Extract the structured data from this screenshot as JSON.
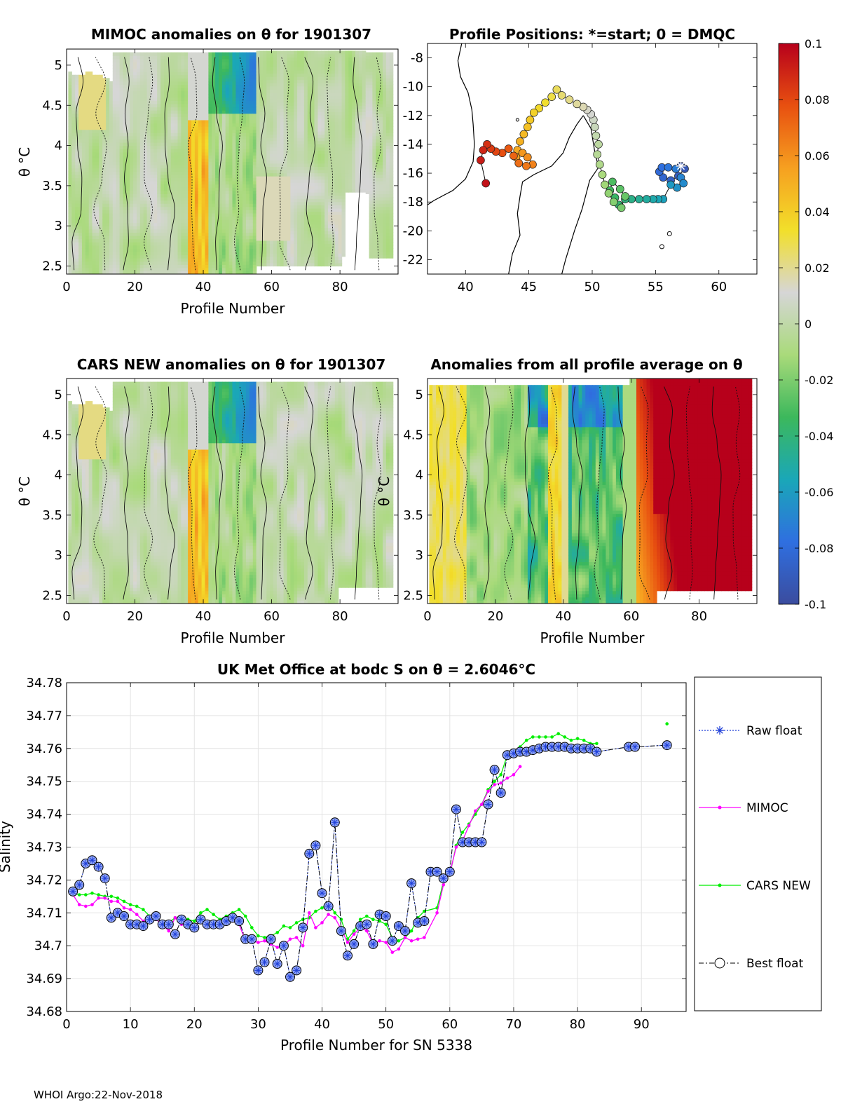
{
  "footer": "WHOI Argo:22-Nov-2018",
  "colors": {
    "raw_float": "#1f3fd8",
    "mimoc": "#ff00ff",
    "cars": "#00ee00",
    "best": "#000000",
    "land": "#000000",
    "nodata": "#d8d8d8"
  },
  "colorbar": {
    "ticks": [
      "0.1",
      "0.08",
      "0.06",
      "0.04",
      "0.02",
      "0",
      "-0.02",
      "-0.04",
      "-0.06",
      "-0.08",
      "-0.1"
    ],
    "range": [
      -0.1,
      0.1
    ],
    "stops": [
      "#3b4c9e",
      "#2f6fe0",
      "#1aa7b8",
      "#3cb85c",
      "#a9da7a",
      "#d6d6d6",
      "#f2df2a",
      "#f6a020",
      "#e85010",
      "#b7001b"
    ]
  },
  "chart_data": [
    {
      "id": "mimoc",
      "type": "heatmap",
      "title": "MIMOC anomalies on θ  for 1901307",
      "xlabel": "Profile Number",
      "ylabel": "θ °C",
      "xlim": [
        0,
        97
      ],
      "ylim": [
        2.4,
        5.2
      ],
      "xticks": [
        "0",
        "20",
        "40",
        "60",
        "80"
      ],
      "yticks": [
        "2.5",
        "3",
        "3.5",
        "4",
        "4.5",
        "5"
      ]
    },
    {
      "id": "positions",
      "type": "scatter",
      "title": "Profile Positions: *=start; 0 = DMQC",
      "xlim": [
        37,
        63
      ],
      "ylim": [
        -23,
        -7
      ],
      "xticks": [
        "40",
        "45",
        "50",
        "55",
        "60"
      ],
      "yticks": [
        "-8",
        "-10",
        "-12",
        "-14",
        "-16",
        "-18",
        "-20",
        "-22"
      ],
      "lon": [
        57.0,
        57.3,
        56.8,
        56.2,
        55.6,
        55.3,
        55.5,
        56.0,
        56.6,
        57.0,
        57.2,
        56.7,
        56.2,
        55.6,
        55.2,
        54.8,
        54.3,
        53.7,
        53.1,
        52.6,
        52.1,
        51.8,
        51.4,
        51.6,
        52.2,
        52.6,
        52.3,
        51.7,
        51.3,
        51.0,
        50.8,
        50.6,
        50.4,
        50.5,
        50.3,
        50.2,
        50.1,
        49.9,
        49.6,
        49.3,
        48.8,
        48.2,
        47.6,
        47.2,
        46.8,
        46.3,
        45.8,
        45.4,
        45.1,
        44.9,
        44.6,
        44.3,
        44.1,
        44.0,
        44.5,
        44.9,
        45.3,
        44.8,
        44.2,
        43.8,
        43.4,
        42.9,
        42.4,
        42.0,
        41.7,
        41.4,
        41.2,
        41.6
      ],
      "lat": [
        -15.5,
        -15.7,
        -16.2,
        -16.5,
        -16.3,
        -15.9,
        -15.6,
        -15.6,
        -15.7,
        -16.3,
        -16.7,
        -17.0,
        -16.8,
        -17.8,
        -17.8,
        -17.8,
        -17.8,
        -17.8,
        -17.8,
        -17.8,
        -18.2,
        -17.7,
        -17.2,
        -16.6,
        -17.1,
        -17.6,
        -18.4,
        -18.0,
        -17.4,
        -16.8,
        -16.1,
        -15.4,
        -14.7,
        -14.0,
        -13.4,
        -12.8,
        -12.3,
        -11.9,
        -11.6,
        -11.4,
        -11.2,
        -10.9,
        -10.6,
        -10.2,
        -10.7,
        -11.1,
        -11.5,
        -11.8,
        -12.3,
        -12.8,
        -13.3,
        -13.8,
        -14.4,
        -14.9,
        -14.6,
        -14.9,
        -15.4,
        -15.5,
        -15.3,
        -14.8,
        -14.3,
        -14.6,
        -14.5,
        -14.3,
        -14.0,
        -14.4,
        -15.1,
        -16.7
      ],
      "start_marker": "*"
    },
    {
      "id": "cars",
      "type": "heatmap",
      "title": "CARS NEW anomalies on θ for 1901307",
      "xlabel": "Profile Number",
      "ylabel": "θ °C",
      "xlim": [
        0,
        97
      ],
      "ylim": [
        2.4,
        5.2
      ],
      "xticks": [
        "0",
        "20",
        "40",
        "60",
        "80"
      ],
      "yticks": [
        "2.5",
        "3",
        "3.5",
        "4",
        "4.5",
        "5"
      ]
    },
    {
      "id": "allavg",
      "type": "heatmap",
      "title": "Anomalies from all profile average on θ",
      "xlabel": "Profile Number",
      "ylabel": "θ °C",
      "xlim": [
        0,
        97
      ],
      "ylim": [
        2.4,
        5.2
      ],
      "xticks": [
        "0",
        "20",
        "40",
        "60",
        "80"
      ],
      "yticks": [
        "2.5",
        "3",
        "3.5",
        "4",
        "4.5",
        "5"
      ]
    },
    {
      "id": "salinity",
      "type": "line",
      "title": "UK Met Office at bodc S on θ = 2.6046°C",
      "xlabel": "Profile Number for SN 5338",
      "ylabel": "Salinity",
      "xlim": [
        0,
        97
      ],
      "ylim": [
        34.68,
        34.78
      ],
      "xticks": [
        "0",
        "10",
        "20",
        "30",
        "40",
        "50",
        "60",
        "70",
        "80",
        "90"
      ],
      "yticks": [
        "34.68",
        "34.69",
        "34.7",
        "34.71",
        "34.72",
        "34.73",
        "34.74",
        "34.75",
        "34.76",
        "34.77",
        "34.78"
      ],
      "series": [
        {
          "name": "Best float",
          "x": [
            1,
            2,
            3,
            4,
            5,
            6,
            7,
            8,
            9,
            10,
            11,
            12,
            13,
            14,
            15,
            16,
            17,
            18,
            19,
            20,
            21,
            22,
            23,
            24,
            25,
            26,
            27,
            28,
            29,
            30,
            31,
            32,
            33,
            34,
            35,
            36,
            37,
            38,
            39,
            40,
            41,
            42,
            43,
            44,
            45,
            46,
            47,
            48,
            49,
            50,
            51,
            52,
            53,
            54,
            55,
            56,
            57,
            58,
            59,
            60,
            61,
            62,
            63,
            64,
            65,
            66,
            67,
            68,
            69,
            70,
            71,
            72,
            73,
            74,
            75,
            76,
            77,
            78,
            79,
            80,
            81,
            82,
            83,
            88,
            89,
            94
          ],
          "values": [
            34.7165,
            34.7185,
            34.725,
            34.726,
            34.724,
            34.7205,
            34.7085,
            34.71,
            34.709,
            34.7065,
            34.7065,
            34.706,
            34.708,
            34.709,
            34.7065,
            34.7065,
            34.7035,
            34.708,
            34.7065,
            34.7055,
            34.708,
            34.7065,
            34.7065,
            34.7065,
            34.7075,
            34.7085,
            34.7075,
            34.702,
            34.702,
            34.6925,
            34.695,
            34.702,
            34.6945,
            34.7,
            34.6905,
            34.6925,
            34.7055,
            34.728,
            34.7305,
            34.716,
            34.712,
            34.7375,
            34.7045,
            34.697,
            34.7005,
            34.706,
            34.7065,
            34.7005,
            34.7095,
            34.709,
            34.7015,
            34.706,
            34.7045,
            34.719,
            34.707,
            34.7075,
            34.7225,
            34.7225,
            34.7205,
            34.7225,
            34.7415,
            34.7315,
            34.7315,
            34.7315,
            34.7315,
            34.743,
            34.7535,
            34.7465,
            34.758,
            34.7585,
            34.759,
            34.759,
            34.7595,
            34.76,
            34.7605,
            34.7605,
            34.7605,
            34.7605,
            34.76,
            34.76,
            34.76,
            34.76,
            34.759,
            34.7605,
            34.7605,
            34.761
          ]
        },
        {
          "name": "Raw float",
          "marker": "*"
        },
        {
          "name": "MIMOC",
          "x": [
            1,
            2,
            3,
            4,
            5,
            6,
            7,
            8,
            9,
            10,
            11,
            12,
            13,
            14,
            15,
            16,
            17,
            18,
            19,
            20,
            21,
            22,
            23,
            24,
            25,
            26,
            27,
            28,
            29,
            30,
            31,
            32,
            33,
            34,
            35,
            36,
            37,
            38,
            39,
            40,
            41,
            42,
            43,
            44,
            45,
            46,
            47,
            48,
            49,
            50,
            51,
            52,
            53,
            54,
            55,
            56,
            58,
            59,
            60,
            61,
            62,
            63,
            64,
            65,
            66,
            67,
            68,
            69,
            70,
            71
          ],
          "values": [
            34.7155,
            34.7125,
            34.712,
            34.7125,
            34.7145,
            34.7145,
            34.7135,
            34.7135,
            34.7115,
            34.711,
            34.7095,
            34.7075,
            34.707,
            34.708,
            34.7065,
            34.7045,
            34.7085,
            34.7065,
            34.706,
            34.7055,
            34.708,
            34.7065,
            34.7065,
            34.706,
            34.707,
            34.7075,
            34.7065,
            34.7015,
            34.7015,
            34.701,
            34.7015,
            34.7005,
            34.6995,
            34.7,
            34.702,
            34.7025,
            34.7,
            34.71,
            34.7055,
            34.707,
            34.7095,
            34.7085,
            34.705,
            34.701,
            34.7035,
            34.7055,
            34.7045,
            34.7005,
            34.7015,
            34.701,
            34.698,
            34.699,
            34.7025,
            34.7015,
            34.702,
            34.7025,
            34.71,
            34.7185,
            34.722,
            34.73,
            34.732,
            34.7365,
            34.741,
            34.743,
            34.747,
            34.749,
            34.7495,
            34.751,
            34.752,
            34.7545
          ]
        },
        {
          "name": "CARS NEW",
          "x": [
            1,
            2,
            3,
            4,
            5,
            6,
            7,
            8,
            9,
            10,
            11,
            12,
            13,
            14,
            15,
            16,
            17,
            18,
            19,
            20,
            21,
            22,
            23,
            24,
            25,
            26,
            27,
            28,
            29,
            30,
            31,
            32,
            33,
            34,
            35,
            36,
            37,
            38,
            39,
            40,
            41,
            42,
            43,
            44,
            45,
            46,
            47,
            48,
            49,
            50,
            51,
            52,
            53,
            54,
            55,
            56,
            58,
            59,
            60,
            61,
            62,
            63,
            64,
            65,
            66,
            67,
            68,
            69,
            70,
            71,
            72,
            73,
            74,
            75,
            76,
            77,
            78,
            79,
            80,
            81,
            82,
            83,
            94
          ],
          "values": [
            34.716,
            34.7155,
            34.7155,
            34.716,
            34.7155,
            34.715,
            34.715,
            34.7145,
            34.7135,
            34.7125,
            34.712,
            34.711,
            34.709,
            34.7085,
            34.707,
            34.707,
            34.7085,
            34.7085,
            34.708,
            34.7075,
            34.71,
            34.711,
            34.7095,
            34.708,
            34.709,
            34.71,
            34.711,
            34.709,
            34.7055,
            34.703,
            34.7025,
            34.703,
            34.704,
            34.706,
            34.7055,
            34.707,
            34.708,
            34.7085,
            34.7105,
            34.7115,
            34.713,
            34.71,
            34.708,
            34.702,
            34.7045,
            34.708,
            34.709,
            34.708,
            34.7075,
            34.7065,
            34.7025,
            34.7015,
            34.7025,
            34.7045,
            34.7085,
            34.7105,
            34.7115,
            34.7195,
            34.7215,
            34.7305,
            34.7345,
            34.737,
            34.74,
            34.743,
            34.7475,
            34.75,
            34.752,
            34.758,
            34.759,
            34.7605,
            34.7625,
            34.7635,
            34.7635,
            34.7635,
            34.7635,
            34.7645,
            34.7635,
            34.7625,
            34.763,
            34.7625,
            34.7615,
            34.7615,
            34.7675
          ]
        }
      ],
      "legend_position": "right"
    }
  ]
}
